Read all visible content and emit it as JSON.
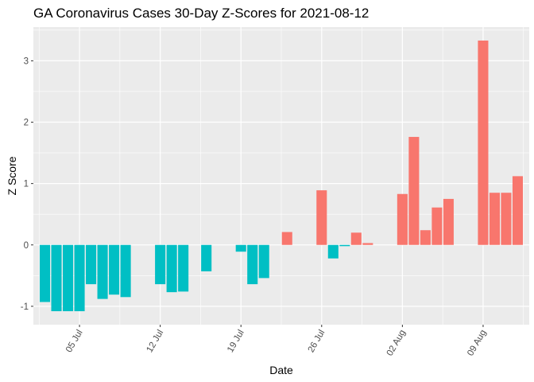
{
  "chart_data": {
    "type": "bar",
    "title": "GA Coronavirus Cases 30-Day Z-Scores for 2021-08-12",
    "xlabel": "Date",
    "ylabel": "Z Score",
    "ylim": [
      -1.3,
      3.55
    ],
    "xlim": [
      "2021-07-01",
      "2021-08-13"
    ],
    "y_ticks": [
      -1,
      0,
      1,
      2,
      3
    ],
    "x_ticks": [
      {
        "date": "2021-07-05",
        "label": "05 Jul"
      },
      {
        "date": "2021-07-12",
        "label": "12 Jul"
      },
      {
        "date": "2021-07-19",
        "label": "19 Jul"
      },
      {
        "date": "2021-07-26",
        "label": "26 Jul"
      },
      {
        "date": "2021-08-02",
        "label": "02 Aug"
      },
      {
        "date": "2021-08-09",
        "label": "09 Aug"
      }
    ],
    "colors": {
      "positive": "#F8766D",
      "negative": "#00BFC4",
      "panel": "#EBEBEB",
      "grid": "#FFFFFF"
    },
    "grid": true,
    "legend": "none",
    "points": [
      {
        "date": "2021-07-02",
        "value": -0.93
      },
      {
        "date": "2021-07-03",
        "value": -1.08
      },
      {
        "date": "2021-07-04",
        "value": -1.08
      },
      {
        "date": "2021-07-05",
        "value": -1.08
      },
      {
        "date": "2021-07-06",
        "value": -0.64
      },
      {
        "date": "2021-07-07",
        "value": -0.88
      },
      {
        "date": "2021-07-08",
        "value": -0.81
      },
      {
        "date": "2021-07-09",
        "value": -0.85
      },
      {
        "date": "2021-07-12",
        "value": -0.64
      },
      {
        "date": "2021-07-13",
        "value": -0.77
      },
      {
        "date": "2021-07-14",
        "value": -0.76
      },
      {
        "date": "2021-07-16",
        "value": -0.43
      },
      {
        "date": "2021-07-19",
        "value": -0.11
      },
      {
        "date": "2021-07-20",
        "value": -0.64
      },
      {
        "date": "2021-07-21",
        "value": -0.54
      },
      {
        "date": "2021-07-23",
        "value": 0.21
      },
      {
        "date": "2021-07-26",
        "value": 0.89
      },
      {
        "date": "2021-07-27",
        "value": -0.22
      },
      {
        "date": "2021-07-28",
        "value": -0.02
      },
      {
        "date": "2021-07-29",
        "value": 0.2
      },
      {
        "date": "2021-07-30",
        "value": 0.03
      },
      {
        "date": "2021-08-02",
        "value": 0.83
      },
      {
        "date": "2021-08-03",
        "value": 1.76
      },
      {
        "date": "2021-08-04",
        "value": 0.24
      },
      {
        "date": "2021-08-05",
        "value": 0.61
      },
      {
        "date": "2021-08-06",
        "value": 0.75
      },
      {
        "date": "2021-08-09",
        "value": 3.33
      },
      {
        "date": "2021-08-10",
        "value": 0.85
      },
      {
        "date": "2021-08-11",
        "value": 0.85
      },
      {
        "date": "2021-08-12",
        "value": 1.12
      }
    ]
  }
}
